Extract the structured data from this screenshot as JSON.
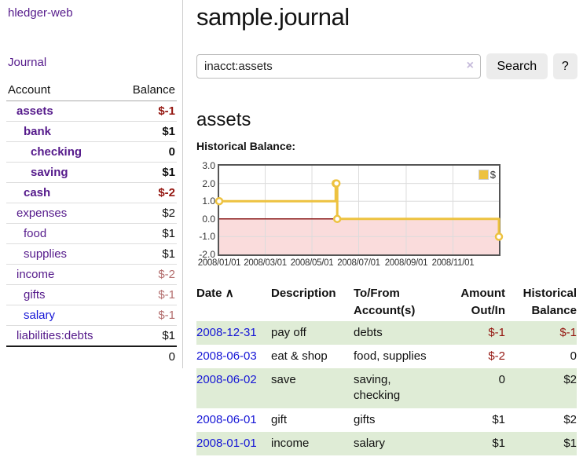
{
  "app": {
    "brand": "hledger-web",
    "nav_journal": "Journal"
  },
  "sidebar": {
    "headers": {
      "account": "Account",
      "balance": "Balance"
    },
    "rows": [
      {
        "name": "assets",
        "balance": "$-1"
      },
      {
        "name": "bank",
        "balance": "$1"
      },
      {
        "name": "checking",
        "balance": "0"
      },
      {
        "name": "saving",
        "balance": "$1"
      },
      {
        "name": "cash",
        "balance": "$-2"
      },
      {
        "name": "expenses",
        "balance": "$2"
      },
      {
        "name": "food",
        "balance": "$1"
      },
      {
        "name": "supplies",
        "balance": "$1"
      },
      {
        "name": "income",
        "balance": "$-2"
      },
      {
        "name": "gifts",
        "balance": "$-1"
      },
      {
        "name": "salary",
        "balance": "$-1"
      },
      {
        "name": "liabilities:debts",
        "balance": "$1"
      }
    ],
    "total": "0"
  },
  "main": {
    "title": "sample.journal",
    "search": {
      "value": "inacct:assets",
      "clear_icon": "×",
      "search_button": "Search",
      "help_button": "?"
    },
    "account_heading": "assets",
    "section_label": "Historical Balance:"
  },
  "register": {
    "headers": {
      "date": "Date",
      "sort_icon": "∧",
      "description": "Description",
      "accounts": "To/From\nAccount(s)",
      "amount": "Amount\nOut/In",
      "balance": "Historical\nBalance"
    },
    "rows": [
      {
        "date": "2008-12-31",
        "description": "pay off",
        "accounts": "debts",
        "amount": "$-1",
        "balance": "$-1"
      },
      {
        "date": "2008-06-03",
        "description": "eat & shop",
        "accounts": "food, supplies",
        "amount": "$-2",
        "balance": "0"
      },
      {
        "date": "2008-06-02",
        "description": "save",
        "accounts": "saving,\nchecking",
        "amount": "0",
        "balance": "$2"
      },
      {
        "date": "2008-06-01",
        "description": "gift",
        "accounts": "gifts",
        "amount": "$1",
        "balance": "$2"
      },
      {
        "date": "2008-01-01",
        "description": "income",
        "accounts": "salary",
        "amount": "$1",
        "balance": "$1"
      }
    ]
  },
  "chart_data": {
    "type": "line",
    "step": true,
    "title": "Historical Balance:",
    "legend": "$",
    "x_range": [
      "2008-01-01",
      "2008-12-31"
    ],
    "ylim": [
      -2,
      3
    ],
    "points": [
      {
        "date": "2008-01-01",
        "value": 1
      },
      {
        "date": "2008-06-01",
        "value": 2
      },
      {
        "date": "2008-06-02",
        "value": 2
      },
      {
        "date": "2008-06-03",
        "value": 0
      },
      {
        "date": "2008-12-31",
        "value": -1
      }
    ],
    "y_ticks": [
      "3.0",
      "2.0",
      "1.0",
      "0.0",
      "-1.0",
      "-2.0"
    ],
    "x_ticks": [
      "2008/01/01",
      "2008/03/01",
      "2008/05/01",
      "2008/07/01",
      "2008/09/01",
      "2008/11/01"
    ],
    "colors": {
      "line": "#edc240",
      "negative_region": "#fadcdc",
      "zero_line": "#8b1a1a",
      "grid": "#dcdcdc"
    }
  }
}
